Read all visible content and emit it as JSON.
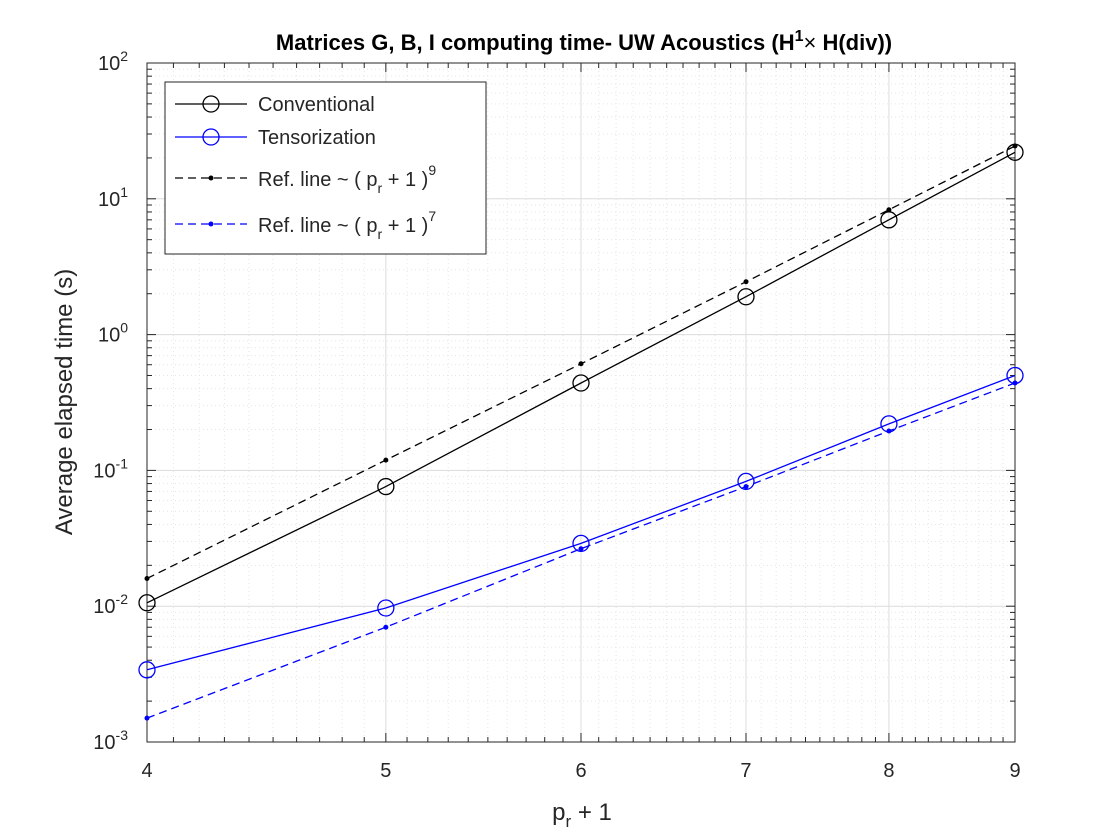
{
  "chart_data": {
    "type": "line",
    "title": {
      "main": "Matrices G, B, I computing time- UW Acoustics (H",
      "superscript": "1",
      "times": "×",
      "tail": " H(div))"
    },
    "xlabel": {
      "base": "p",
      "sub": "r",
      "rest": " + 1"
    },
    "ylabel": "Average elapsed time (s)",
    "xscale": "log",
    "yscale": "log",
    "xlim": [
      4,
      9
    ],
    "ylim": [
      0.001,
      100
    ],
    "x_ticks": [
      "4",
      "5",
      "6",
      "7",
      "8",
      "9"
    ],
    "y_ticks": [
      {
        "base": "10",
        "exp": "-3"
      },
      {
        "base": "10",
        "exp": "-2"
      },
      {
        "base": "10",
        "exp": "-1"
      },
      {
        "base": "10",
        "exp": "0"
      },
      {
        "base": "10",
        "exp": "1"
      },
      {
        "base": "10",
        "exp": "2"
      }
    ],
    "grid": true,
    "legend_position": "top-left",
    "x": [
      4,
      5,
      6,
      7,
      8,
      9
    ],
    "series": [
      {
        "name": "Conventional",
        "color": "#000000",
        "style": "solid",
        "marker": "circle",
        "values": [
          0.0106,
          0.076,
          0.44,
          1.9,
          7.0,
          22.0
        ]
      },
      {
        "name": "Tensorization",
        "color": "#0000ff",
        "style": "solid",
        "marker": "circle",
        "values": [
          0.0034,
          0.0097,
          0.029,
          0.083,
          0.22,
          0.5
        ]
      },
      {
        "name": "Ref. line ~ ( p",
        "name_sub": "r",
        "name_tail": " + 1 )",
        "name_exp": "9",
        "color": "#000000",
        "style": "dashed",
        "marker": "dot",
        "values": [
          0.016,
          0.119,
          0.61,
          2.45,
          8.3,
          24.5
        ]
      },
      {
        "name": "Ref. line ~ ( p",
        "name_sub": "r",
        "name_tail": " + 1 )",
        "name_exp": "7",
        "color": "#0000ff",
        "style": "dashed",
        "marker": "dot",
        "values": [
          0.0015,
          0.007,
          0.0265,
          0.076,
          0.195,
          0.44
        ]
      }
    ]
  }
}
